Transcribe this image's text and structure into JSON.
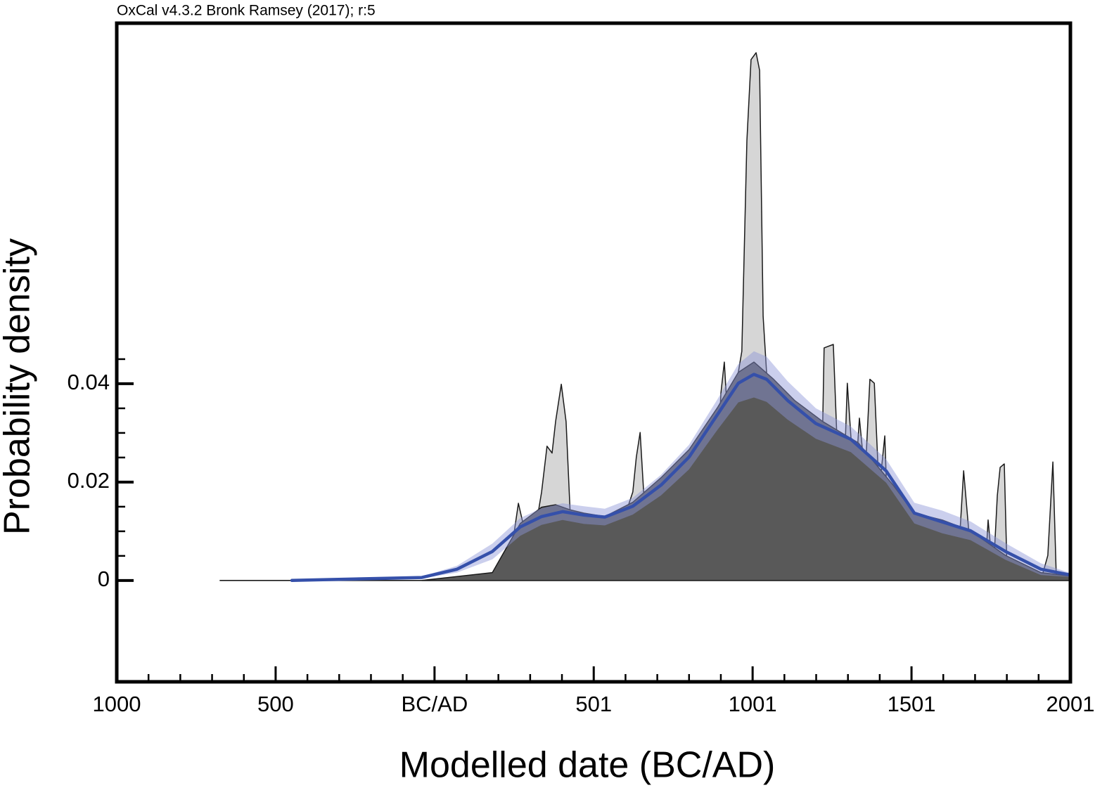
{
  "chart_data": {
    "type": "area",
    "title": "OxCal v4.3.2 Bronk Ramsey (2017); r:5",
    "x_label": "Modelled date (BC/AD)",
    "y_label": "Probability density",
    "xlim": [
      -1000,
      2001
    ],
    "ylim": [
      -0.0206,
      0.1133
    ],
    "xticks": [
      {
        "value": -1000,
        "label": "1000"
      },
      {
        "value": -500,
        "label": "500"
      },
      {
        "value": 0,
        "label": "BC/AD"
      },
      501,
      1001,
      1501,
      2001
    ],
    "xminorticks": [
      -900,
      -800,
      -700,
      -600,
      -400,
      -300,
      -200,
      -100,
      101,
      201,
      301,
      401,
      601,
      701,
      801,
      901,
      1101,
      1201,
      1301,
      1401,
      1601,
      1701,
      1801,
      1901
    ],
    "yticks": [
      0,
      0.02,
      0.04
    ],
    "yminorticks": [
      0.005,
      0.01,
      0.015,
      0.025,
      0.03,
      0.035,
      0.045
    ],
    "series": [
      {
        "kind": "area",
        "color": "#d6d6d6",
        "edge": "#1a1a1a",
        "x": [
          -675,
          182,
          237,
          264,
          281,
          297,
          315,
          337,
          354,
          370,
          381,
          399,
          414,
          430,
          436,
          470,
          503,
          536,
          547,
          580,
          624,
          635,
          647,
          658,
          691,
          724,
          757,
          779,
          890,
          901,
          912,
          923,
          945,
          967,
          983,
          996,
          1012,
          1023,
          1034,
          1045,
          1056,
          1089,
          1107,
          1122,
          1133,
          1156,
          1178,
          1200,
          1218,
          1226,
          1255,
          1266,
          1282,
          1299,
          1322,
          1337,
          1355,
          1370,
          1384,
          1399,
          1417,
          1432,
          1454,
          1470,
          1510,
          1620,
          1653,
          1665,
          1682,
          1698,
          1731,
          1742,
          1758,
          1771,
          1780,
          1793,
          1802,
          1908,
          1930,
          1946,
          1957,
          2001
        ],
        "values": [
          0,
          0,
          0.0037,
          0.0157,
          0.0109,
          0.008,
          0.0094,
          0.018,
          0.0273,
          0.0259,
          0.0323,
          0.0399,
          0.0323,
          0.0094,
          0.0051,
          0.0049,
          0.0073,
          0.0059,
          0.0123,
          0.0094,
          0.018,
          0.0251,
          0.0301,
          0.018,
          0.018,
          0.0209,
          0.018,
          0.0209,
          0.0216,
          0.038,
          0.0444,
          0.0323,
          0.038,
          0.0466,
          0.0894,
          0.1059,
          0.1073,
          0.1037,
          0.0537,
          0.0423,
          0.0273,
          0.0273,
          0.0351,
          0.0323,
          0.028,
          0.0316,
          0.0266,
          0.0194,
          0.0194,
          0.0473,
          0.048,
          0.0294,
          0.008,
          0.0401,
          0.018,
          0.033,
          0.0209,
          0.0409,
          0.0401,
          0.018,
          0.0294,
          0.0009,
          0,
          0.0109,
          0.0116,
          0.0116,
          0.0094,
          0.0223,
          0.0094,
          0.0009,
          0,
          0.0123,
          0.0009,
          0.0173,
          0.023,
          0.0237,
          0.0009,
          0,
          0.0051,
          0.0241,
          0,
          0
        ]
      },
      {
        "kind": "area",
        "color": "#595959",
        "edge": "#1a1a1a",
        "x": [
          -40,
          182,
          270,
          337,
          381,
          425,
          470,
          536,
          624,
          713,
          801,
          890,
          956,
          1005,
          1067,
          1133,
          1222,
          1333,
          1443,
          1510,
          1598,
          1687,
          1797,
          1908,
          2001
        ],
        "values": [
          0,
          0.0016,
          0.0116,
          0.0149,
          0.0154,
          0.0144,
          0.0137,
          0.013,
          0.0159,
          0.0209,
          0.0266,
          0.0351,
          0.0423,
          0.0444,
          0.0409,
          0.0366,
          0.0323,
          0.028,
          0.0194,
          0.0137,
          0.0123,
          0.0101,
          0.0051,
          0.0016,
          0.0009
        ]
      },
      {
        "kind": "line",
        "color": "#3550aa",
        "band_color": "#8c95d8",
        "x": [
          -449,
          -40,
          71,
          182,
          270,
          337,
          403,
          470,
          536,
          624,
          713,
          801,
          890,
          956,
          1005,
          1045,
          1111,
          1200,
          1310,
          1421,
          1510,
          1598,
          1687,
          1797,
          1908,
          2001
        ],
        "values": [
          0,
          0.0006,
          0.0023,
          0.0059,
          0.0109,
          0.013,
          0.014,
          0.0133,
          0.0129,
          0.0151,
          0.0194,
          0.0251,
          0.0337,
          0.0401,
          0.0419,
          0.0409,
          0.0366,
          0.0319,
          0.0287,
          0.0223,
          0.0137,
          0.0119,
          0.0101,
          0.0059,
          0.0023,
          0.0011
        ],
        "upper": [
          0,
          0.0008,
          0.003,
          0.0075,
          0.0127,
          0.0147,
          0.0157,
          0.0151,
          0.0146,
          0.0168,
          0.0215,
          0.0276,
          0.0368,
          0.044,
          0.0466,
          0.0455,
          0.0405,
          0.035,
          0.0313,
          0.0247,
          0.0158,
          0.0142,
          0.012,
          0.0076,
          0.0035,
          0.0015
        ],
        "lower": [
          0,
          0.0004,
          0.0016,
          0.0043,
          0.0091,
          0.0113,
          0.0123,
          0.0115,
          0.0112,
          0.0134,
          0.0173,
          0.0226,
          0.0306,
          0.0362,
          0.0372,
          0.0363,
          0.0327,
          0.0288,
          0.0261,
          0.0199,
          0.0116,
          0.0096,
          0.0082,
          0.0042,
          0.0011,
          0.0007
        ]
      }
    ]
  }
}
